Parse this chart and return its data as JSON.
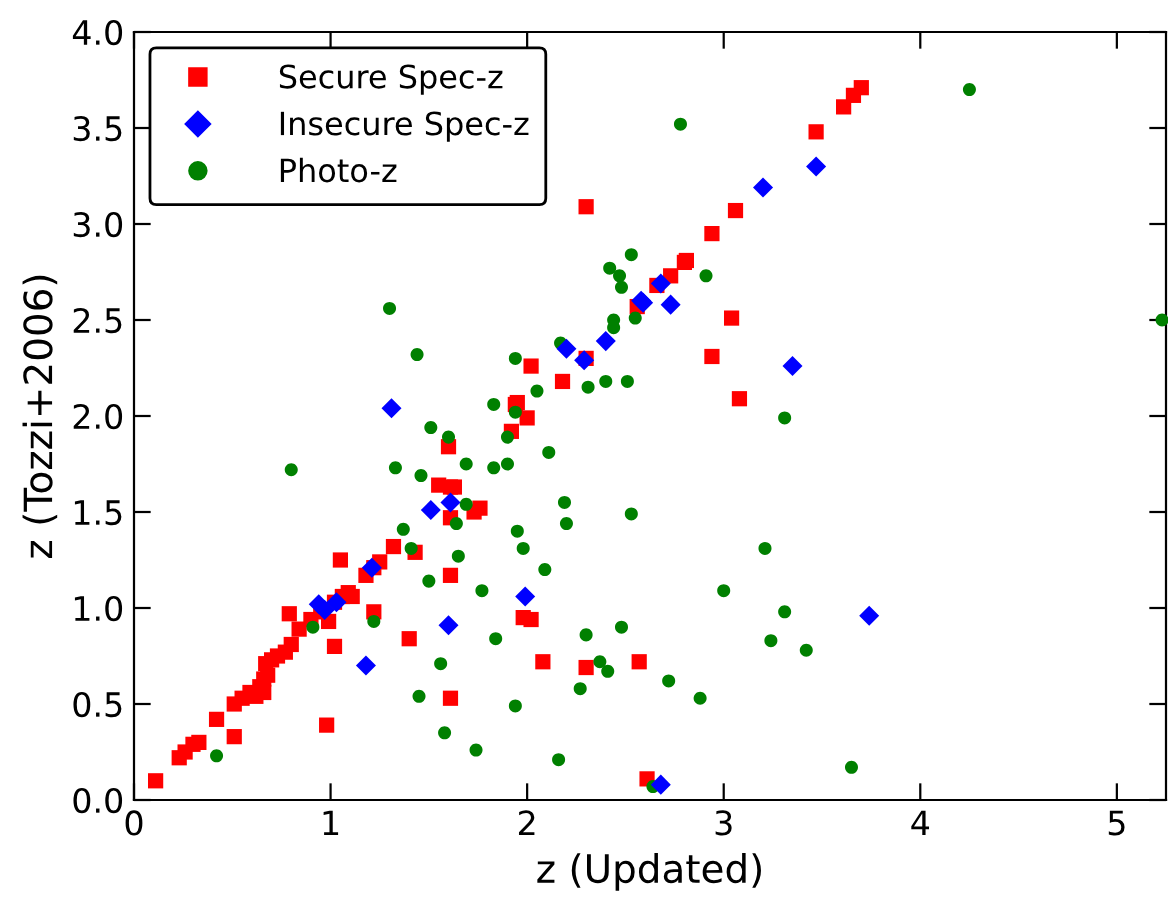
{
  "chart_data": {
    "type": "scatter",
    "xlabel": "z (Updated)",
    "ylabel": "z (Tozzi+2006)",
    "xlim": [
      0,
      5.25
    ],
    "ylim": [
      0,
      4.0
    ],
    "xticks": [
      0,
      1,
      2,
      3,
      4,
      5
    ],
    "yticks": [
      {
        "value": 0,
        "label": "0.0"
      },
      {
        "value": 0.5,
        "label": "0.5"
      },
      {
        "value": 1,
        "label": "1.0"
      },
      {
        "value": 1.5,
        "label": "1.5"
      },
      {
        "value": 2,
        "label": "2.0"
      },
      {
        "value": 2.5,
        "label": "2.5"
      },
      {
        "value": 3,
        "label": "3.0"
      },
      {
        "value": 3.5,
        "label": "3.5"
      },
      {
        "value": 4,
        "label": "4.0"
      }
    ],
    "grid": false,
    "legend": "top left",
    "series": [
      {
        "name": "Secure Spec-z",
        "color": "#ff0000",
        "marker": "square",
        "x": [
          0.11,
          0.23,
          0.26,
          0.3,
          0.33,
          0.42,
          0.51,
          0.51,
          0.55,
          0.59,
          0.64,
          0.66,
          0.68,
          0.62,
          0.66,
          0.67,
          0.7,
          0.73,
          0.77,
          0.8,
          0.79,
          0.84,
          0.9,
          0.95,
          0.98,
          1.02,
          0.99,
          1.05,
          1.02,
          1.06,
          1.09,
          1.11,
          1.18,
          1.22,
          1.25,
          1.32,
          1.22,
          1.4,
          1.43,
          1.55,
          1.6,
          1.61,
          1.63,
          1.61,
          1.61,
          1.61,
          1.73,
          1.76,
          1.94,
          2.0,
          1.92,
          1.98,
          2.02,
          2.08,
          2.3,
          2.57,
          2.61,
          2.3,
          2.02,
          2.18,
          2.3,
          1.95,
          2.56,
          3.7,
          3.66,
          3.61,
          3.47,
          3.06,
          2.94,
          2.81,
          2.8,
          2.73,
          2.66,
          3.04,
          2.94,
          3.08
        ],
        "values": [
          0.1,
          0.22,
          0.25,
          0.29,
          0.3,
          0.42,
          0.33,
          0.5,
          0.53,
          0.56,
          0.59,
          0.63,
          0.65,
          0.54,
          0.56,
          0.71,
          0.73,
          0.75,
          0.77,
          0.81,
          0.97,
          0.89,
          0.94,
          0.98,
          0.39,
          0.8,
          0.93,
          1.25,
          1.03,
          1.06,
          1.08,
          1.06,
          1.17,
          1.21,
          1.24,
          1.32,
          0.98,
          0.84,
          1.29,
          1.64,
          1.84,
          1.63,
          1.63,
          1.47,
          1.17,
          0.53,
          1.5,
          1.52,
          2.06,
          1.99,
          1.92,
          0.95,
          0.94,
          0.72,
          0.69,
          0.72,
          0.11,
          3.09,
          2.26,
          2.18,
          2.3,
          2.07,
          2.57,
          3.71,
          3.67,
          3.61,
          3.48,
          3.07,
          2.95,
          2.81,
          2.8,
          2.73,
          2.68,
          2.51,
          2.31,
          2.09
        ]
      },
      {
        "name": "Insecure Spec-z",
        "color": "#0000ff",
        "marker": "diamond",
        "x": [
          1.31,
          0.94,
          0.97,
          1.03,
          1.21,
          1.18,
          1.51,
          1.61,
          1.6,
          1.99,
          2.68,
          2.2,
          2.29,
          2.4,
          2.58,
          3.47,
          3.2,
          2.68,
          2.59,
          2.73,
          3.35,
          3.74
        ],
        "values": [
          2.04,
          1.02,
          0.99,
          1.03,
          1.21,
          0.7,
          1.51,
          1.55,
          0.91,
          1.06,
          0.08,
          2.35,
          2.29,
          2.39,
          2.6,
          3.3,
          3.19,
          2.69,
          2.59,
          2.58,
          2.26,
          0.96
        ]
      },
      {
        "name": "Photo-z",
        "color": "#008000",
        "marker": "circle",
        "x": [
          0.8,
          1.51,
          1.6,
          1.69,
          1.33,
          1.46,
          1.69,
          1.64,
          1.37,
          1.41,
          1.65,
          1.5,
          1.77,
          0.91,
          1.22,
          1.56,
          1.45,
          1.58,
          1.74,
          0.42,
          1.3,
          1.44,
          1.94,
          1.83,
          2.05,
          2.17,
          2.31,
          2.4,
          2.51,
          2.42,
          2.47,
          2.48,
          2.53,
          2.44,
          2.44,
          2.55,
          2.78,
          4.25,
          5.23,
          2.91,
          3.31,
          1.94,
          1.9,
          2.11,
          1.83,
          1.9,
          2.19,
          2.2,
          1.95,
          1.98,
          2.09,
          2.53,
          3.21,
          3.0,
          3.31,
          3.24,
          3.42,
          1.84,
          2.3,
          2.48,
          2.37,
          2.41,
          2.27,
          2.72,
          2.88,
          1.94,
          2.16,
          3.65,
          2.64
        ],
        "values": [
          1.72,
          1.94,
          1.89,
          1.75,
          1.73,
          1.69,
          1.54,
          1.44,
          1.41,
          1.31,
          1.27,
          1.14,
          1.09,
          0.9,
          0.93,
          0.71,
          0.54,
          0.35,
          0.26,
          0.23,
          2.56,
          2.32,
          2.3,
          2.06,
          2.13,
          2.38,
          2.15,
          2.18,
          2.18,
          2.77,
          2.73,
          2.67,
          2.84,
          2.5,
          2.46,
          2.51,
          3.52,
          3.7,
          2.5,
          2.73,
          1.99,
          2.02,
          1.89,
          1.81,
          1.73,
          1.75,
          1.55,
          1.44,
          1.4,
          1.31,
          1.2,
          1.49,
          1.31,
          1.09,
          0.98,
          0.83,
          0.78,
          0.84,
          0.86,
          0.9,
          0.72,
          0.67,
          0.58,
          0.62,
          0.53,
          0.49,
          0.21,
          0.17,
          0.07
        ]
      }
    ]
  }
}
